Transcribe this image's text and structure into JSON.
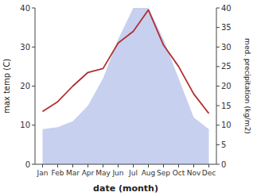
{
  "chart_data": {
    "type": "line",
    "categories": [
      "Jan",
      "Feb",
      "Mar",
      "Apr",
      "May",
      "Jun",
      "Jul",
      "Aug",
      "Sep",
      "Oct",
      "Nov",
      "Dec"
    ],
    "series": [
      {
        "type": "line",
        "color": "#b03030",
        "values": [
          13.5,
          16.0,
          20.0,
          23.5,
          24.5,
          31.0,
          34.0,
          39.5,
          30.5,
          25.0,
          18.0,
          13.0
        ]
      },
      {
        "type": "area",
        "axis": "y2",
        "color": "#c8d0f0",
        "values": [
          9,
          9.5,
          11,
          15,
          22,
          32,
          40,
          40,
          32,
          22,
          12,
          9
        ]
      }
    ],
    "xlabel": "date (month)",
    "ylabel": "max temp (C)",
    "y2label": "med. precipitation (kg/m2)",
    "ylim": [
      0,
      40
    ],
    "yticks": [
      0,
      10,
      20,
      30,
      40
    ],
    "y2lim": [
      0,
      40
    ],
    "y2ticks": [
      0,
      5,
      10,
      15,
      20,
      25,
      30,
      35,
      40
    ],
    "grid": false
  }
}
